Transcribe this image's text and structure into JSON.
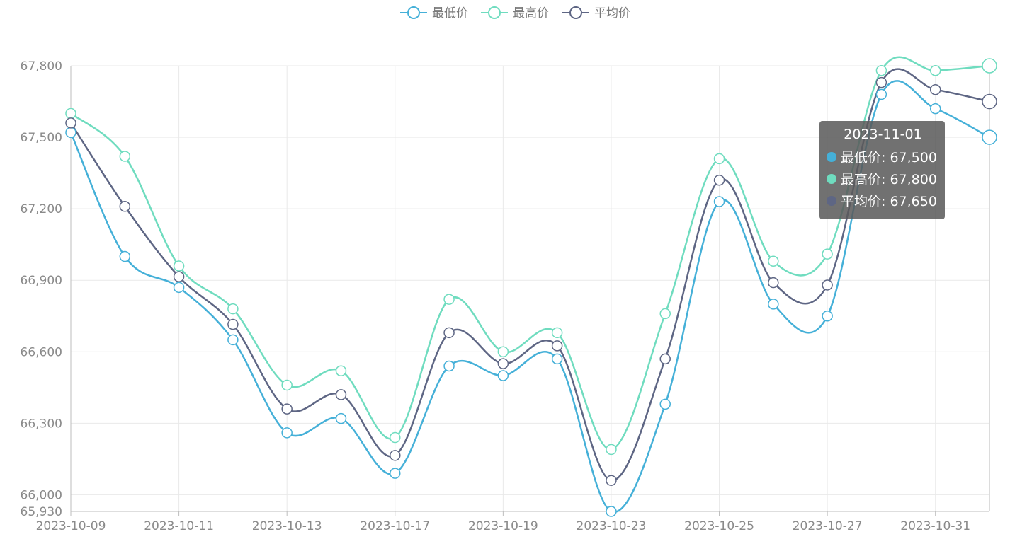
{
  "colors": {
    "low": "#45b0d8",
    "high": "#6fdcbf",
    "avg": "#5e6684",
    "grid": "#e9e9e9",
    "axis": "#bdbdbd",
    "text": "#8a8a8a"
  },
  "tooltip": {
    "title": "2023-11-01",
    "rows": [
      {
        "label": "最低价: 67,500",
        "color": "#45b0d8"
      },
      {
        "label": "最高价: 67,800",
        "color": "#6fdcbf"
      },
      {
        "label": "平均价: 67,650",
        "color": "#5e6684"
      }
    ]
  },
  "chart_data": {
    "type": "line",
    "smooth": true,
    "legend_position": "top-center",
    "grid": true,
    "x": [
      "2023-10-09",
      "2023-10-10",
      "2023-10-11",
      "2023-10-12",
      "2023-10-13",
      "2023-10-14",
      "2023-10-17",
      "2023-10-18",
      "2023-10-19",
      "2023-10-20",
      "2023-10-23",
      "2023-10-24",
      "2023-10-25",
      "2023-10-26",
      "2023-10-27",
      "2023-10-30",
      "2023-10-31",
      "2023-11-01"
    ],
    "x_tick_labels": [
      "2023-10-09",
      "2023-10-11",
      "2023-10-13",
      "2023-10-17",
      "2023-10-19",
      "2023-10-23",
      "2023-10-25",
      "2023-10-27",
      "2023-10-31"
    ],
    "y_ticks": [
      66000,
      66300,
      66600,
      66900,
      67200,
      67500,
      67800
    ],
    "y_tick_labels": [
      "66,000",
      "66,300",
      "66,600",
      "66,900",
      "67,200",
      "67,500",
      "67,800"
    ],
    "y_min_label": "65,930",
    "ylim": [
      65930,
      67800
    ],
    "highlight_index": 17,
    "series": [
      {
        "name": "最低价",
        "key": "low",
        "values": [
          67520,
          67000,
          66870,
          66650,
          66260,
          66320,
          66090,
          66540,
          66500,
          66570,
          65930,
          66380,
          67230,
          66800,
          66750,
          67680,
          67620,
          67500
        ]
      },
      {
        "name": "最高价",
        "key": "high",
        "values": [
          67600,
          67420,
          66960,
          66780,
          66460,
          66520,
          66240,
          66820,
          66600,
          66680,
          66190,
          66760,
          67410,
          66980,
          67010,
          67780,
          67780,
          67800
        ]
      },
      {
        "name": "平均价",
        "key": "avg",
        "values": [
          67560,
          67210,
          66915,
          66715,
          66360,
          66420,
          66165,
          66680,
          66550,
          66625,
          66060,
          66570,
          67320,
          66890,
          66880,
          67730,
          67700,
          67650
        ]
      }
    ]
  }
}
